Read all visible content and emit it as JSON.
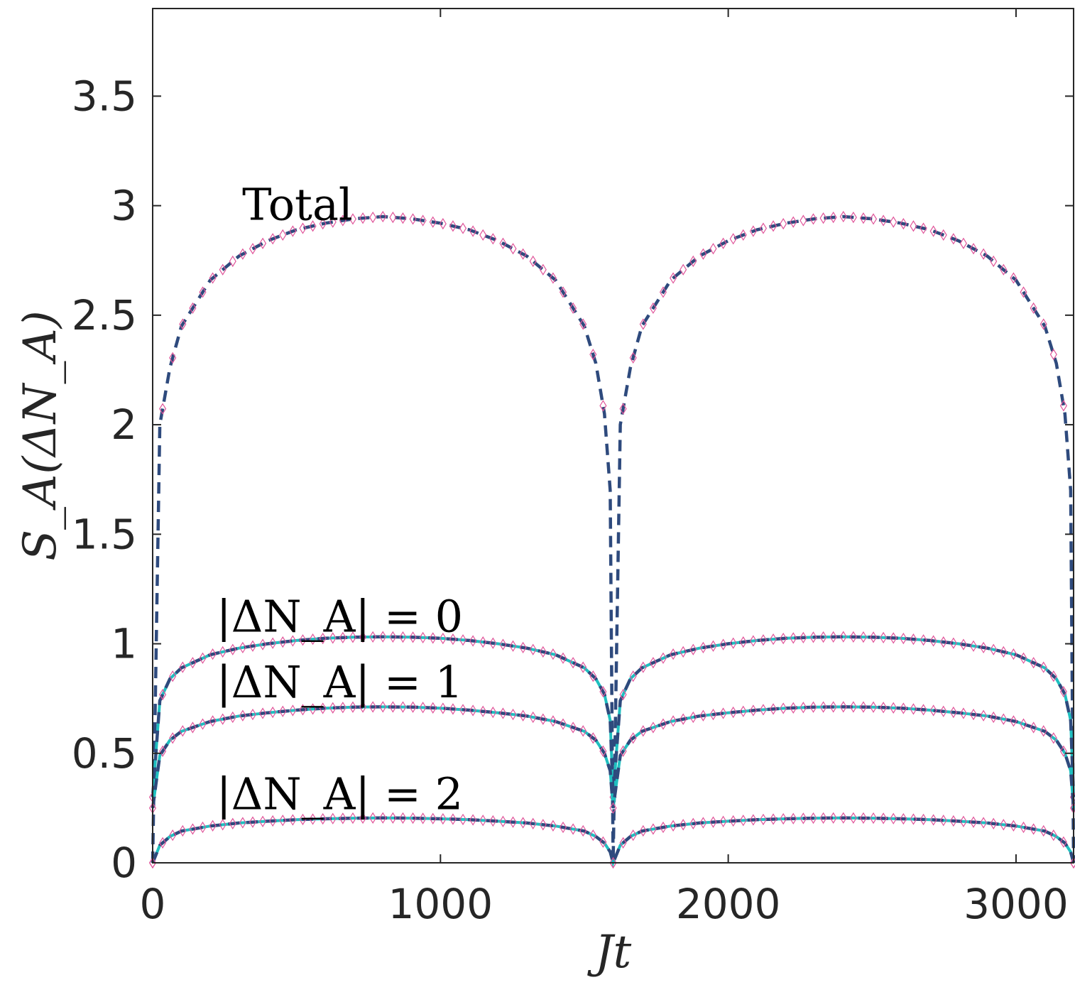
{
  "chart_data": {
    "type": "line",
    "xlabel": "Jt",
    "ylabel": "S_A(ΔN_A)",
    "xlim": [
      0,
      3200
    ],
    "ylim": [
      0,
      3.9
    ],
    "xticks": [
      0,
      1000,
      2000,
      3000
    ],
    "xtick_labels": [
      "0",
      "1000",
      "2000",
      "3000"
    ],
    "yticks": [
      0,
      0.5,
      1,
      1.5,
      2,
      2.5,
      3,
      3.5
    ],
    "ytick_labels": [
      "0",
      "0.5",
      "1",
      "1.5",
      "2",
      "2.5",
      "3",
      "3.5"
    ],
    "grid": false,
    "annotations": [
      {
        "text": "Total",
        "x": 410,
        "y": 3.0
      },
      {
        "text": "|ΔN_A| = 0",
        "x": 320,
        "y": 1.12
      },
      {
        "text": "|ΔN_A| = 1",
        "x": 320,
        "y": 0.82
      },
      {
        "text": "|ΔN_A| = 2",
        "x": 320,
        "y": 0.31
      }
    ],
    "period": 1600,
    "x": [
      0,
      25,
      60,
      100,
      200,
      300,
      400,
      500,
      600,
      700,
      800,
      900,
      1000,
      1100,
      1200,
      1300,
      1400,
      1500,
      1540,
      1570,
      1590,
      1600
    ],
    "curves": [
      {
        "name": "Total",
        "values": [
          0,
          2.0,
          2.26,
          2.45,
          2.66,
          2.77,
          2.84,
          2.89,
          2.92,
          2.94,
          2.95,
          2.94,
          2.92,
          2.89,
          2.84,
          2.77,
          2.66,
          2.45,
          2.28,
          2.05,
          1.7,
          0
        ],
        "colors": {
          "dashed": "#2e4a7d",
          "markers": "#e0559a"
        }
      },
      {
        "name": "|ΔN_A| = 0",
        "values": [
          0.3,
          0.74,
          0.84,
          0.89,
          0.95,
          0.98,
          1.0,
          1.015,
          1.025,
          1.03,
          1.032,
          1.03,
          1.025,
          1.015,
          1.0,
          0.98,
          0.95,
          0.89,
          0.84,
          0.77,
          0.65,
          0.3
        ],
        "colors": {
          "solid": "#1fbfbf",
          "dashed": "#2e4a7d",
          "markers": "#e0559a"
        }
      },
      {
        "name": "|ΔN_A| = 1",
        "values": [
          0.25,
          0.49,
          0.56,
          0.6,
          0.645,
          0.67,
          0.685,
          0.697,
          0.706,
          0.711,
          0.712,
          0.711,
          0.706,
          0.697,
          0.685,
          0.67,
          0.645,
          0.6,
          0.56,
          0.5,
          0.42,
          0.25
        ],
        "colors": {
          "solid": "#1fbfbf",
          "dashed": "#2e4a7d",
          "markers": "#e0559a"
        }
      },
      {
        "name": "|ΔN_A| = 2",
        "values": [
          0,
          0.08,
          0.12,
          0.145,
          0.168,
          0.182,
          0.19,
          0.197,
          0.201,
          0.204,
          0.205,
          0.204,
          0.201,
          0.197,
          0.19,
          0.182,
          0.168,
          0.145,
          0.12,
          0.09,
          0.05,
          0
        ],
        "colors": {
          "solid": "#1fbfbf",
          "dashed": "#2e4a7d",
          "markers": "#e0559a"
        }
      }
    ]
  }
}
